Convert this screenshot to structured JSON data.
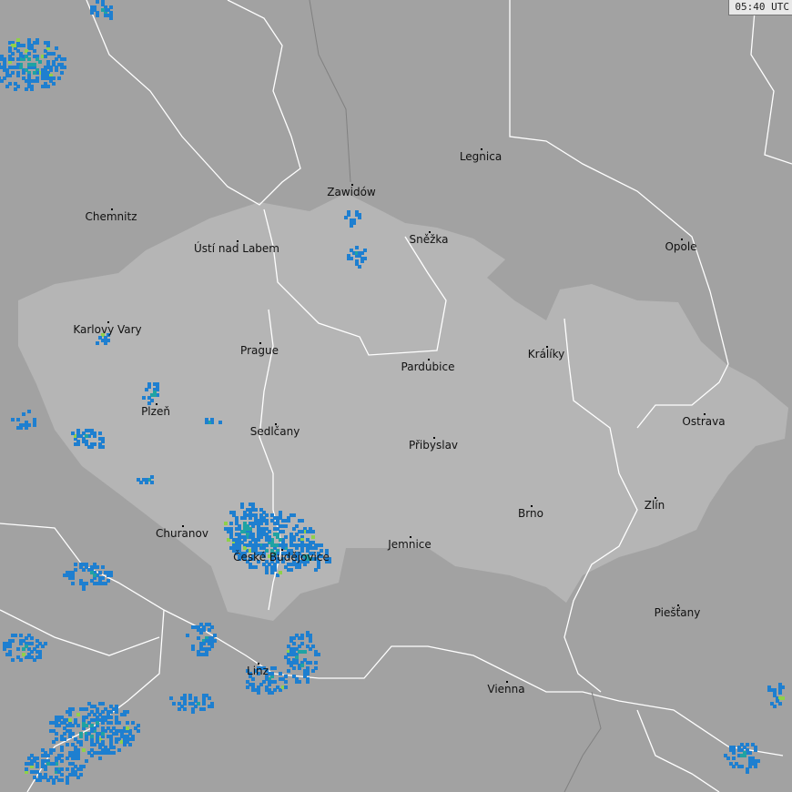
{
  "timestamp": "05:40 UTC",
  "colors": {
    "background": "#a2a2a2",
    "highlight_region": "#b5b5b5",
    "borders": "#ffffff",
    "radar_light": "#1e7fd0",
    "radar_medium": "#1fa3a3",
    "radar_strong": "#8fd14a"
  },
  "cities": [
    "Legnica",
    "Zawidów",
    "Chemnitz",
    "Ústí nad Labem",
    "Sněžka",
    "Opole",
    "Karlovy Vary",
    "Prague",
    "Pardubice",
    "Králíky",
    "Plzeň",
    "Sedlčany",
    "Ostrava",
    "Přibyslav",
    "Zlín",
    "Brno",
    "Churanov",
    "České Budějovice",
    "Jemnice",
    "Piešťany",
    "Linz",
    "Vienna"
  ]
}
